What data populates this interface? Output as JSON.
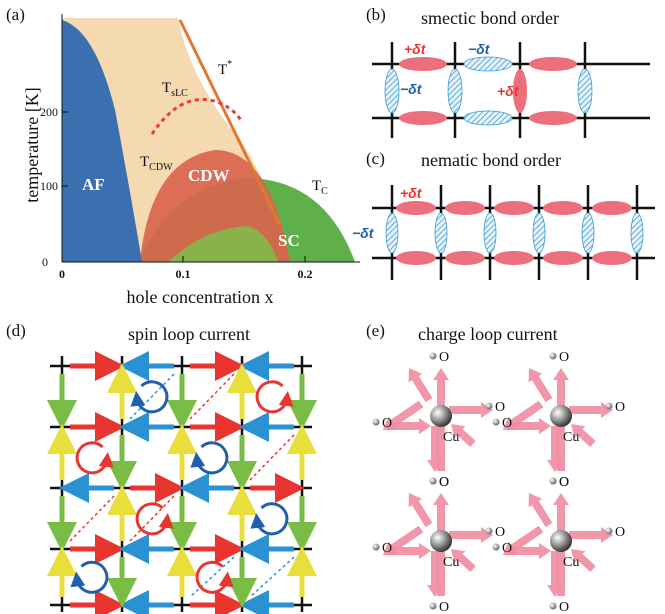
{
  "panels": {
    "a": {
      "label": "(a)"
    },
    "b": {
      "label": "(b)",
      "title": "smectic bond order",
      "delta_plus": "+δt",
      "delta_minus": "−δt"
    },
    "c": {
      "label": "(c)",
      "title": "nematic bond order",
      "delta_plus": "+δt",
      "delta_minus": "−δt"
    },
    "d": {
      "label": "(d)",
      "title": "spin loop current"
    },
    "e": {
      "label": "(e)",
      "title": "charge loop current",
      "atom_o": "O",
      "atom_cu": "Cu"
    }
  },
  "phase_diagram": {
    "ylabel": "temperature [K]",
    "xlabel": "hole concentration x",
    "y_ticks": [
      "0",
      "100",
      "200"
    ],
    "x_ticks": [
      "0",
      "0.1",
      "0.2"
    ],
    "regions": {
      "af": "AF",
      "cdw": "CDW",
      "sc": "SC"
    },
    "lines": {
      "tstar": "T",
      "tstar_sup": "*",
      "tslc": "T",
      "tslc_sub": "sLC",
      "tcdw": "T",
      "tcdw_sub": "CDW",
      "tc": "T",
      "tc_sub": "C"
    }
  },
  "colors": {
    "af": "#3a6fb0",
    "pseudogap": "#f5d9b0",
    "cdw": "#d9654d",
    "sc": "#5fb04a",
    "red": "#e83a3a",
    "blue": "#2b8fd0",
    "yellow": "#f2e84a",
    "green": "#7cbf4a",
    "pink": "#f29aa8"
  }
}
